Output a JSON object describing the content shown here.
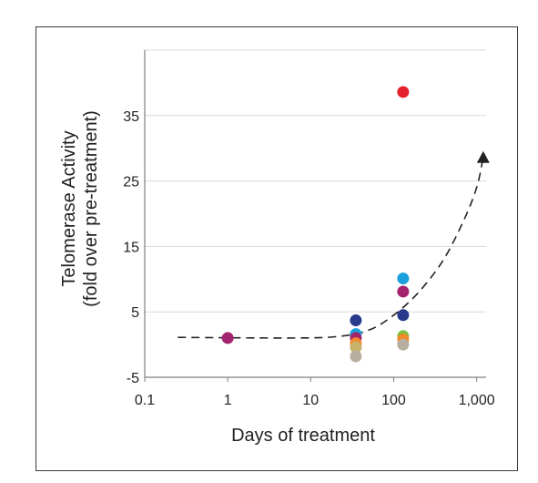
{
  "chart_data": {
    "type": "scatter",
    "title": "",
    "xlabel": "Days of treatment",
    "ylabel_lines": [
      "Telomerase Activity",
      "(fold over pre-treatment)"
    ],
    "x_scale": "log",
    "x_ticks": [
      0.1,
      1,
      10,
      100,
      1000
    ],
    "x_tick_labels": [
      "0.1",
      "1",
      "10",
      "100",
      "1,000"
    ],
    "xlim": [
      0.1,
      1300
    ],
    "y_ticks": [
      -5,
      5,
      15,
      25,
      35
    ],
    "y_tick_labels": [
      "-5",
      "5",
      "15",
      "25",
      "35"
    ],
    "ylim": [
      -5,
      45
    ],
    "grid": "horizontal",
    "points": [
      {
        "x": 1,
        "y": 1.0,
        "color": "#a3236f"
      },
      {
        "x": 35,
        "y": 3.7,
        "color": "#283a8c"
      },
      {
        "x": 35,
        "y": 1.6,
        "color": "#1aa0dc"
      },
      {
        "x": 35,
        "y": 1.0,
        "color": "#a3236f"
      },
      {
        "x": 35,
        "y": 0.2,
        "color": "#f2892a"
      },
      {
        "x": 35,
        "y": -0.4,
        "color": "#c8b26a"
      },
      {
        "x": 35,
        "y": -1.8,
        "color": "#b8aea0"
      },
      {
        "x": 130,
        "y": 38.6,
        "color": "#e3222d"
      },
      {
        "x": 130,
        "y": 10.1,
        "color": "#1aa0dc"
      },
      {
        "x": 130,
        "y": 8.1,
        "color": "#a3236f"
      },
      {
        "x": 130,
        "y": 4.5,
        "color": "#283a8c"
      },
      {
        "x": 130,
        "y": 1.3,
        "color": "#7cc242"
      },
      {
        "x": 130,
        "y": 0.8,
        "color": "#f2892a"
      },
      {
        "x": 130,
        "y": 0.0,
        "color": "#b8aea0"
      }
    ],
    "trend_curve": {
      "style": "dashed",
      "arrow_end": "triangle",
      "points": [
        [
          0.25,
          1.1
        ],
        [
          5,
          1.0
        ],
        [
          20,
          1.2
        ],
        [
          50,
          2.2
        ],
        [
          100,
          4.5
        ],
        [
          200,
          8.0
        ],
        [
          400,
          13.0
        ],
        [
          700,
          19.0
        ],
        [
          1000,
          24.0
        ],
        [
          1200,
          28.6
        ]
      ]
    },
    "colors": {
      "axis": "#7f7f7f",
      "grid": "#d9d9d9",
      "trend": "#222222"
    }
  }
}
